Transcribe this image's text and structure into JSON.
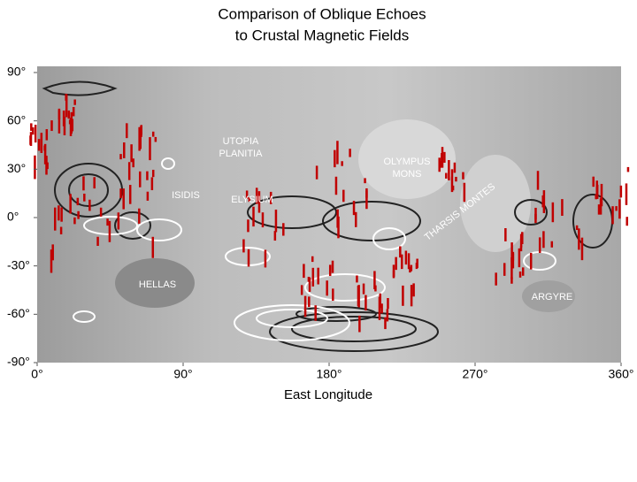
{
  "chart_data": {
    "type": "map",
    "title": [
      "Comparison of Oblique Echoes",
      "to Crustal Magnetic Fields"
    ],
    "xlabel": "East Longitude",
    "xlim": [
      0,
      360
    ],
    "ylim": [
      -90,
      90
    ],
    "xticks": [
      {
        "value": 0,
        "label": "0°"
      },
      {
        "value": 90,
        "label": "90°"
      },
      {
        "value": 180,
        "label": "180°"
      },
      {
        "value": 270,
        "label": "270°"
      },
      {
        "value": 360,
        "label": "360°"
      }
    ],
    "yticks": [
      {
        "value": 90,
        "label": "90°"
      },
      {
        "value": 60,
        "label": "60°"
      },
      {
        "value": 30,
        "label": "30°"
      },
      {
        "value": 0,
        "label": "0°"
      },
      {
        "value": -30,
        "label": "-30°"
      },
      {
        "value": -60,
        "label": "-60°"
      },
      {
        "value": -90,
        "label": "-90°"
      }
    ],
    "annotations": [
      [
        "UTOPIA",
        "PLANITIA"
      ],
      [
        "OLYMPUS",
        "MONS"
      ],
      [
        "ISIDIS"
      ],
      [
        "ELYSIUM"
      ],
      [
        "HELLAS"
      ],
      [
        "ARGYRE"
      ],
      [
        "THARSIS MONTES"
      ]
    ]
  }
}
